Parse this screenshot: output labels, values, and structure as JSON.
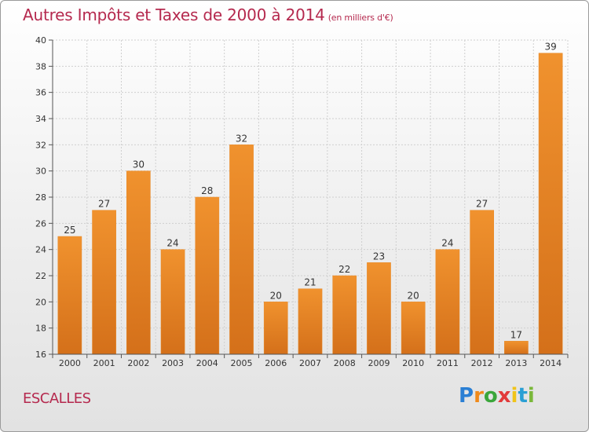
{
  "title": "Autres Impôts et Taxes de 2000 à 2014",
  "unit_note": "(en milliers d'€)",
  "commune": "ESCALLES",
  "logo": {
    "letters": [
      {
        "char": "P",
        "color": "#2a7fd4"
      },
      {
        "char": "r",
        "color": "#f08a1a"
      },
      {
        "char": "o",
        "color": "#3aa63a"
      },
      {
        "char": "x",
        "color": "#e23a3a"
      },
      {
        "char": "i",
        "color": "#f0c419"
      },
      {
        "char": "t",
        "color": "#2a9fd4"
      },
      {
        "char": "i",
        "color": "#7ab83a"
      }
    ]
  },
  "chart_data": {
    "type": "bar",
    "categories": [
      "2000",
      "2001",
      "2002",
      "2003",
      "2004",
      "2005",
      "2006",
      "2007",
      "2008",
      "2009",
      "2010",
      "2011",
      "2012",
      "2013",
      "2014"
    ],
    "values": [
      25,
      27,
      30,
      24,
      28,
      32,
      20,
      21,
      22,
      23,
      20,
      24,
      27,
      17,
      39
    ],
    "ylim": [
      16,
      40
    ],
    "yticks": [
      16,
      18,
      20,
      22,
      24,
      26,
      28,
      30,
      32,
      34,
      36,
      38,
      40
    ],
    "grid": true,
    "bar_color": "#f0922e",
    "bar_color_dark": "#d4701a"
  }
}
